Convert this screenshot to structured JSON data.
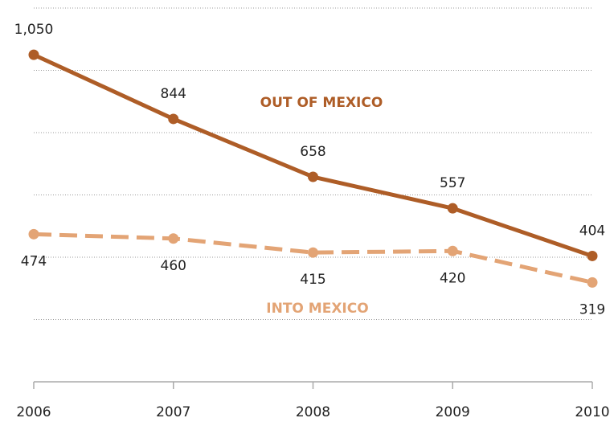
{
  "chart_data": {
    "type": "line",
    "x": [
      2006,
      2007,
      2008,
      2009,
      2010
    ],
    "xlim": [
      2006,
      2010
    ],
    "xticks": [
      2006,
      2007,
      2008,
      2009,
      2010
    ],
    "ylim": [
      0,
      1200
    ],
    "yticks": [
      0,
      200,
      400,
      600,
      800,
      1000,
      1200
    ],
    "grid": true,
    "series": [
      {
        "name": "OUT OF MEXICO",
        "color": "#ae5d27",
        "dashed": false,
        "values": [
          1050,
          844,
          658,
          557,
          404
        ],
        "value_labels": [
          "1,050",
          "844",
          "658",
          "557",
          "404"
        ]
      },
      {
        "name": "INTO MEXICO",
        "color": "#e3a475",
        "dashed": true,
        "values": [
          474,
          460,
          415,
          420,
          319
        ],
        "value_labels": [
          "474",
          "460",
          "415",
          "420",
          "319"
        ]
      }
    ]
  }
}
